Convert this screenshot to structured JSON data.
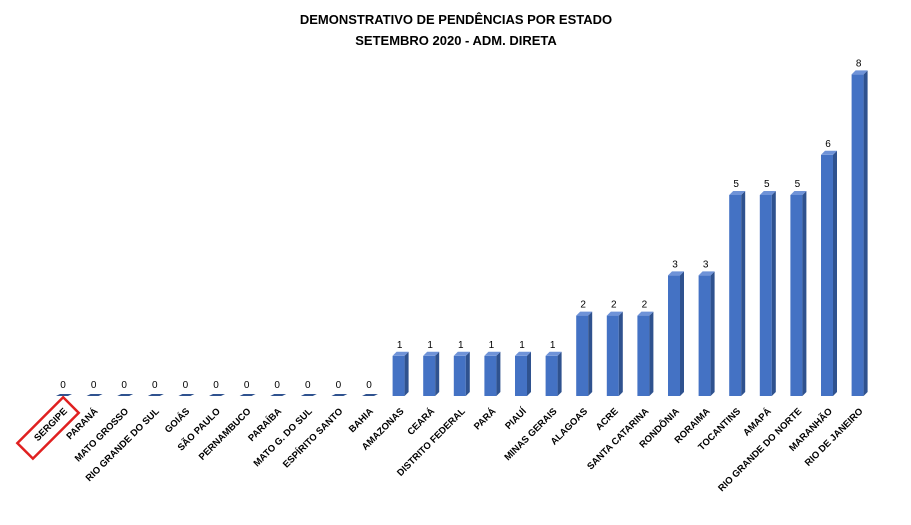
{
  "chart_data": {
    "type": "bar",
    "title": "DEMONSTRATIVO DE PENDÊNCIAS POR ESTADO",
    "subtitle": "SETEMBRO 2020 - ADM. DIRETA",
    "xlabel": "",
    "ylabel": "",
    "ylim": [
      0,
      8
    ],
    "grid": false,
    "legend": "none",
    "bar_style": "3d",
    "categories": [
      "SERGIPE",
      "PARANÁ",
      "MATO GROSSO",
      "RIO GRANDE DO SUL",
      "GOIÁS",
      "SÃO PAULO",
      "PERNAMBUCO",
      "PARAÍBA",
      "MATO G. DO SUL",
      "ESPÍRITO  SANTO",
      "BAHIA",
      "AMAZONAS",
      "CEARÁ",
      "DISTRITO  FEDERAL",
      "PARÁ",
      "PIAUÍ",
      "MINAS GERAIS",
      "ALAGOAS",
      "ACRE",
      "SANTA CATARINA",
      "RONDÔNIA",
      "RORAIMA",
      "TOCANTINS",
      "AMAPÁ",
      "RIO GRANDE DO NORTE",
      "MARANHÃO",
      "RIO DE JANEIRO"
    ],
    "values": [
      0,
      0,
      0,
      0,
      0,
      0,
      0,
      0,
      0,
      0,
      0,
      1,
      1,
      1,
      1,
      1,
      1,
      2,
      2,
      2,
      3,
      3,
      5,
      5,
      5,
      6,
      8
    ],
    "highlighted_category": "SERGIPE",
    "colors": {
      "bar_front": "#4472C4",
      "bar_side": "#2F528F",
      "bar_top": "#6F93D8",
      "highlight_box": "#E02020"
    }
  }
}
